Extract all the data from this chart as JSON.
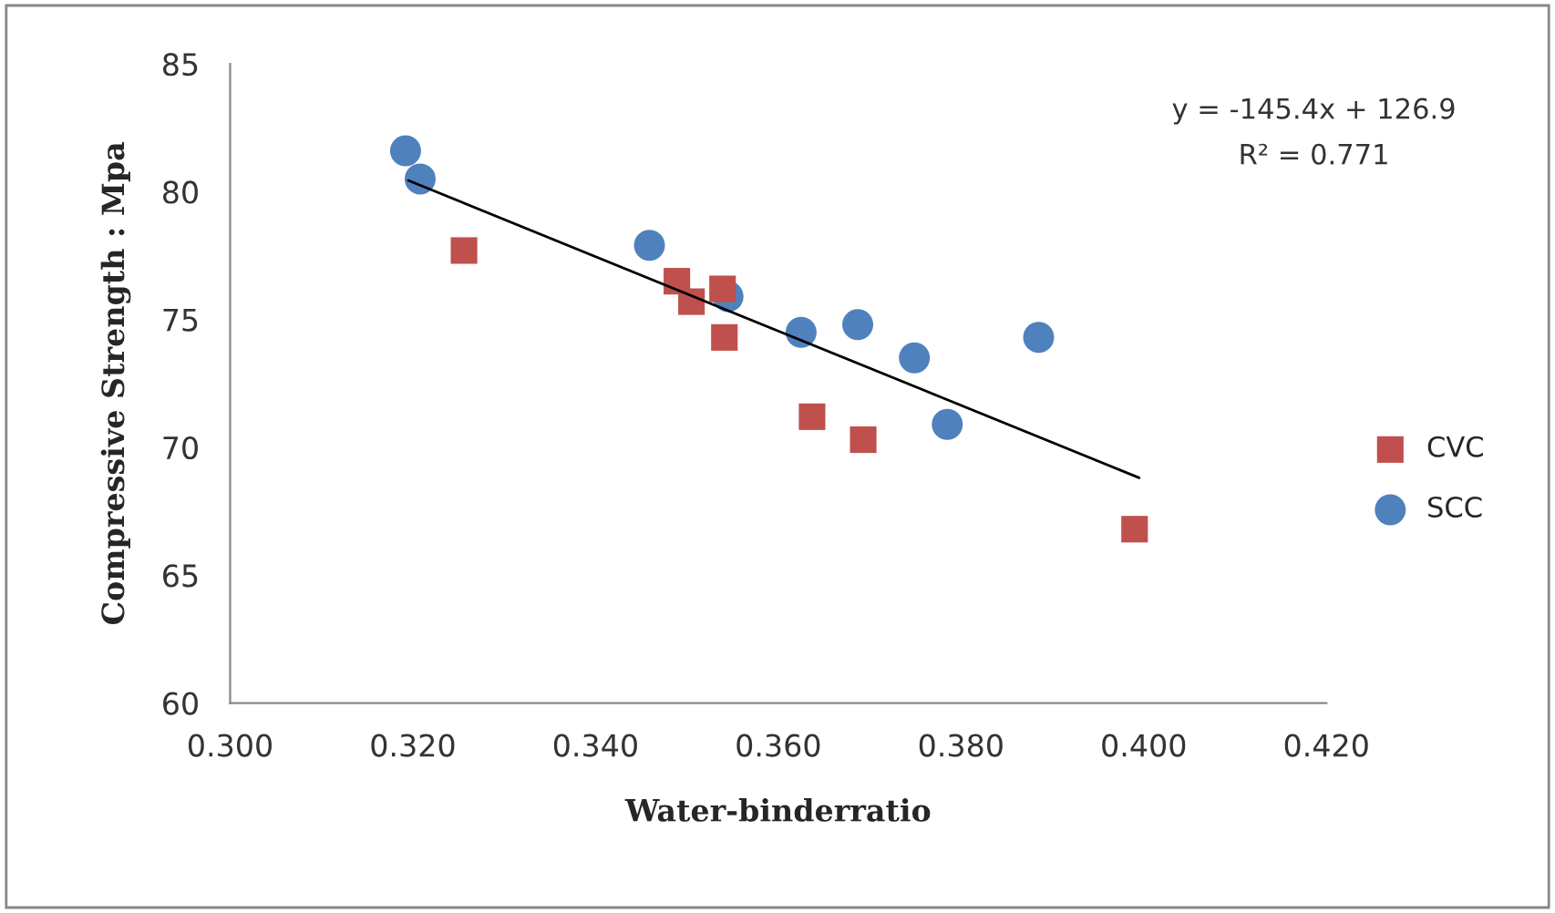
{
  "chart_data": {
    "type": "scatter",
    "xlabel": "Water-binderratio",
    "ylabel": "Compressive Strength : Mpa",
    "xlim": [
      0.3,
      0.42
    ],
    "xticks": [
      {
        "value": 0.3,
        "label": "0.300"
      },
      {
        "value": 0.32,
        "label": "0.320"
      },
      {
        "value": 0.34,
        "label": "0.340"
      },
      {
        "value": 0.36,
        "label": "0.360"
      },
      {
        "value": 0.38,
        "label": "0.380"
      },
      {
        "value": 0.4,
        "label": "0.400"
      },
      {
        "value": 0.42,
        "label": "0.420"
      }
    ],
    "ylim": [
      60,
      85
    ],
    "yticks": [
      60,
      65,
      70,
      75,
      80,
      85
    ],
    "grid": false,
    "legend": "right",
    "series": [
      {
        "name": "CVC",
        "color": "#c0504d",
        "marker": "square",
        "x": [
          0.3256,
          0.3489,
          0.3505,
          0.3539,
          0.3541,
          0.3637,
          0.3693,
          0.399
        ],
        "values": [
          77.7,
          76.5,
          75.7,
          76.2,
          74.3,
          71.2,
          70.3,
          66.8
        ]
      },
      {
        "name": "SCC",
        "color": "#4f81bd",
        "marker": "circle",
        "x": [
          0.3192,
          0.3208,
          0.3459,
          0.3545,
          0.3625,
          0.3687,
          0.3749,
          0.3785,
          0.3885
        ],
        "values": [
          81.6,
          80.5,
          77.9,
          75.9,
          74.5,
          74.8,
          73.5,
          70.9,
          74.3
        ]
      },
      {
        "type": "line",
        "color": "#000000",
        "marker": "none",
        "x": [
          0.3195,
          0.3995
        ],
        "values": [
          80.44,
          68.81
        ]
      }
    ],
    "annotations": [
      "y = -145.4x + 126.9",
      "R² = 0.771"
    ]
  }
}
